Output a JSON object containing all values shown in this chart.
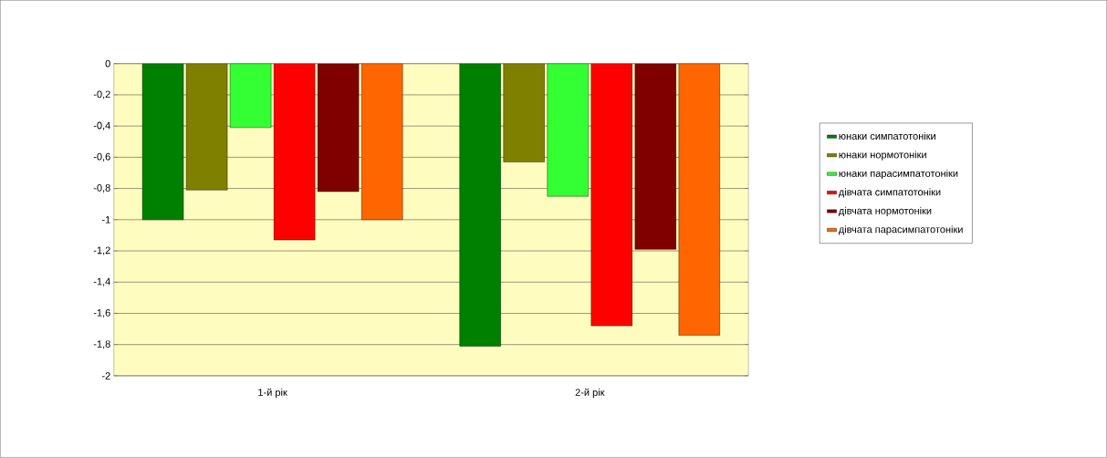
{
  "chart_data": {
    "type": "bar",
    "categories": [
      "1-й рік",
      "2-й рік"
    ],
    "series": [
      {
        "name": "юнаки симпатотоніки",
        "color": "#008000",
        "values": [
          -1.0,
          -1.81
        ]
      },
      {
        "name": "юнаки нормотоніки",
        "color": "#808000",
        "values": [
          -0.81,
          -0.63
        ]
      },
      {
        "name": "юнаки парасимпатотоніки",
        "color": "#33ff33",
        "values": [
          -0.41,
          -0.85
        ]
      },
      {
        "name": "дівчата симпатотоніки",
        "color": "#ff0000",
        "values": [
          -1.13,
          -1.68
        ]
      },
      {
        "name": "дівчата нормотоніки",
        "color": "#800000",
        "values": [
          -0.82,
          -1.19
        ]
      },
      {
        "name": "дівчата парасимпатотоніки",
        "color": "#ff6600",
        "values": [
          -1.0,
          -1.74
        ]
      }
    ],
    "ylim": [
      -2,
      0
    ],
    "yticks": [
      {
        "value": -2,
        "label": "-2"
      },
      {
        "value": -1.8,
        "label": "-1,8"
      },
      {
        "value": -1.6,
        "label": "-1,6"
      },
      {
        "value": -1.4,
        "label": "-1,4"
      },
      {
        "value": -1.2,
        "label": "-1,2"
      },
      {
        "value": -1,
        "label": "-1"
      },
      {
        "value": -0.8,
        "label": "-0,8"
      },
      {
        "value": -0.6,
        "label": "-0,6"
      },
      {
        "value": -0.4,
        "label": "-0,4"
      },
      {
        "value": -0.2,
        "label": "-0,2"
      },
      {
        "value": 0,
        "label": "0"
      }
    ],
    "grid": "y",
    "legend": "right"
  }
}
